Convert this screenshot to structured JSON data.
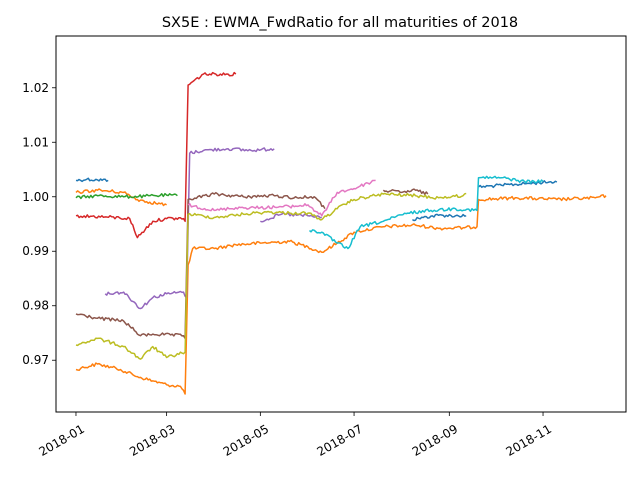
{
  "chart_data": {
    "type": "line",
    "title": "SX5E : EWMA_FwdRatio for all maturities of 2018",
    "xlabel": "",
    "ylabel": "",
    "x_axis": "date",
    "xlim": [
      "2017-12-19",
      "2018-12-25"
    ],
    "ylim": [
      0.9605,
      1.0295
    ],
    "x_ticks": [
      "2018-01-01",
      "2018-03-01",
      "2018-05-01",
      "2018-07-01",
      "2018-09-01",
      "2018-11-01"
    ],
    "x_tick_labels": [
      "2018-01",
      "2018-03",
      "2018-05",
      "2018-07",
      "2018-09",
      "2018-11"
    ],
    "y_ticks": [
      0.97,
      0.98,
      0.99,
      1.0,
      1.01,
      1.02
    ],
    "y_tick_labels": [
      "0.97",
      "0.98",
      "0.99",
      "1.00",
      "1.01",
      "1.02"
    ],
    "grid": false,
    "legend": "none",
    "series": [
      {
        "color": "#1f77b4",
        "points": [
          [
            "2018-01-01",
            1.003
          ],
          [
            "2018-01-08",
            1.0032
          ],
          [
            "2018-01-15",
            1.0031
          ],
          [
            "2018-01-22",
            1.003
          ]
        ]
      },
      {
        "color": "#1f77b4",
        "points": [
          [
            "2018-08-08",
            0.9958
          ],
          [
            "2018-08-15",
            0.9962
          ],
          [
            "2018-08-25",
            0.9966
          ],
          [
            "2018-09-05",
            0.9965
          ],
          [
            "2018-09-12",
            0.9965
          ]
        ]
      },
      {
        "color": "#1f77b4",
        "points": [
          [
            "2018-09-20",
            1.0018
          ],
          [
            "2018-10-05",
            1.0021
          ],
          [
            "2018-10-20",
            1.0024
          ],
          [
            "2018-11-05",
            1.0027
          ],
          [
            "2018-11-10",
            1.0027
          ]
        ]
      },
      {
        "color": "#ff7f0e",
        "points": [
          [
            "2018-01-01",
            0.9683
          ],
          [
            "2018-01-15",
            0.9693
          ],
          [
            "2018-01-30",
            0.9683
          ],
          [
            "2018-02-10",
            0.967
          ],
          [
            "2018-02-20",
            0.9662
          ],
          [
            "2018-03-01",
            0.9655
          ],
          [
            "2018-03-10",
            0.9652
          ],
          [
            "2018-03-13",
            0.9638
          ],
          [
            "2018-03-15",
            0.9875
          ],
          [
            "2018-03-18",
            0.9905
          ],
          [
            "2018-04-01",
            0.9905
          ],
          [
            "2018-04-15",
            0.9912
          ],
          [
            "2018-05-01",
            0.9915
          ],
          [
            "2018-05-20",
            0.9918
          ],
          [
            "2018-06-01",
            0.9908
          ],
          [
            "2018-06-10",
            0.9898
          ],
          [
            "2018-06-20",
            0.9915
          ],
          [
            "2018-07-01",
            0.9935
          ],
          [
            "2018-07-20",
            0.9945
          ],
          [
            "2018-08-10",
            0.9948
          ],
          [
            "2018-08-25",
            0.9942
          ],
          [
            "2018-09-10",
            0.9943
          ],
          [
            "2018-09-19",
            0.9945
          ],
          [
            "2018-09-20",
            0.9995
          ],
          [
            "2018-10-15",
            0.9998
          ],
          [
            "2018-11-10",
            0.9995
          ],
          [
            "2018-12-05",
            0.9998
          ],
          [
            "2018-12-12",
            1.0002
          ]
        ]
      },
      {
        "color": "#ff7f0e",
        "points": [
          [
            "2018-01-01",
            1.0008
          ],
          [
            "2018-01-15",
            1.0012
          ],
          [
            "2018-02-01",
            1.0008
          ],
          [
            "2018-02-10",
            0.9995
          ],
          [
            "2018-02-18",
            0.999
          ],
          [
            "2018-03-01",
            0.9985
          ]
        ]
      },
      {
        "color": "#2ca02c",
        "points": [
          [
            "2018-01-01",
            0.9998
          ],
          [
            "2018-01-15",
            1.0002
          ],
          [
            "2018-02-01",
            1.0
          ],
          [
            "2018-02-15",
            1.0001
          ],
          [
            "2018-03-01",
            1.0003
          ],
          [
            "2018-03-08",
            1.0002
          ]
        ]
      },
      {
        "color": "#d62728",
        "points": [
          [
            "2018-01-01",
            0.9965
          ],
          [
            "2018-01-20",
            0.9963
          ],
          [
            "2018-02-05",
            0.996
          ],
          [
            "2018-02-10",
            0.9925
          ],
          [
            "2018-02-20",
            0.9955
          ],
          [
            "2018-03-01",
            0.996
          ],
          [
            "2018-03-12",
            0.996
          ],
          [
            "2018-03-13",
            0.9955
          ],
          [
            "2018-03-15",
            1.0205
          ],
          [
            "2018-03-25",
            1.0225
          ],
          [
            "2018-04-05",
            1.0225
          ],
          [
            "2018-04-15",
            1.0225
          ]
        ]
      },
      {
        "color": "#9467bd",
        "points": [
          [
            "2018-01-20",
            0.9822
          ],
          [
            "2018-02-01",
            0.9825
          ],
          [
            "2018-02-12",
            0.9795
          ],
          [
            "2018-02-20",
            0.9815
          ],
          [
            "2018-03-01",
            0.9822
          ],
          [
            "2018-03-12",
            0.9825
          ],
          [
            "2018-03-14",
            0.9815
          ],
          [
            "2018-03-16",
            1.008
          ],
          [
            "2018-03-25",
            1.0085
          ],
          [
            "2018-04-10",
            1.0088
          ],
          [
            "2018-04-25",
            1.0085
          ],
          [
            "2018-05-10",
            1.0088
          ]
        ]
      },
      {
        "color": "#9467bd",
        "points": [
          [
            "2018-05-01",
            0.9955
          ],
          [
            "2018-05-15",
            0.9968
          ],
          [
            "2018-06-01",
            0.9965
          ],
          [
            "2018-06-10",
            0.9962
          ]
        ]
      },
      {
        "color": "#8c564b",
        "points": [
          [
            "2018-01-01",
            0.9785
          ],
          [
            "2018-01-15",
            0.9777
          ],
          [
            "2018-02-01",
            0.9772
          ],
          [
            "2018-02-12",
            0.9745
          ],
          [
            "2018-02-20",
            0.9748
          ],
          [
            "2018-03-12",
            0.9745
          ],
          [
            "2018-03-13",
            0.974
          ],
          [
            "2018-03-15",
            0.9995
          ],
          [
            "2018-04-01",
            1.0005
          ],
          [
            "2018-04-20",
            1.0
          ],
          [
            "2018-05-10",
            1.0002
          ],
          [
            "2018-05-25",
            0.9998
          ],
          [
            "2018-06-05",
            1.0
          ],
          [
            "2018-06-12",
            0.9978
          ]
        ]
      },
      {
        "color": "#8c564b",
        "points": [
          [
            "2018-07-20",
            1.0012
          ],
          [
            "2018-08-01",
            1.0008
          ],
          [
            "2018-08-10",
            1.0012
          ],
          [
            "2018-08-18",
            1.0005
          ]
        ]
      },
      {
        "color": "#e377c2",
        "points": [
          [
            "2018-03-15",
            0.9985
          ],
          [
            "2018-04-01",
            0.9975
          ],
          [
            "2018-04-15",
            0.998
          ],
          [
            "2018-05-01",
            0.998
          ],
          [
            "2018-05-20",
            0.9982
          ],
          [
            "2018-06-01",
            0.9985
          ],
          [
            "2018-06-10",
            0.9965
          ],
          [
            "2018-06-20",
            1.0008
          ],
          [
            "2018-07-01",
            1.0015
          ],
          [
            "2018-07-10",
            1.0025
          ],
          [
            "2018-07-15",
            1.003
          ]
        ]
      },
      {
        "color": "#bcbd22",
        "points": [
          [
            "2018-01-01",
            0.9728
          ],
          [
            "2018-01-15",
            0.974
          ],
          [
            "2018-02-01",
            0.9725
          ],
          [
            "2018-02-12",
            0.9702
          ],
          [
            "2018-02-20",
            0.9725
          ],
          [
            "2018-03-01",
            0.9705
          ],
          [
            "2018-03-13",
            0.9715
          ],
          [
            "2018-03-15",
            0.9968
          ],
          [
            "2018-04-01",
            0.9962
          ],
          [
            "2018-04-20",
            0.9968
          ],
          [
            "2018-05-05",
            0.9972
          ],
          [
            "2018-05-20",
            0.997
          ],
          [
            "2018-06-01",
            0.997
          ],
          [
            "2018-06-10",
            0.9958
          ],
          [
            "2018-06-20",
            0.9978
          ],
          [
            "2018-07-01",
            0.9995
          ],
          [
            "2018-07-20",
            1.0005
          ],
          [
            "2018-08-10",
            1.0002
          ],
          [
            "2018-08-25",
            0.9998
          ],
          [
            "2018-09-10",
            1.0002
          ],
          [
            "2018-09-12",
            1.0006
          ]
        ]
      },
      {
        "color": "#17becf",
        "points": [
          [
            "2018-06-02",
            0.9938
          ],
          [
            "2018-06-10",
            0.9935
          ],
          [
            "2018-06-20",
            0.9915
          ],
          [
            "2018-06-27",
            0.9905
          ],
          [
            "2018-07-05",
            0.9945
          ],
          [
            "2018-07-20",
            0.9955
          ],
          [
            "2018-08-05",
            0.997
          ],
          [
            "2018-08-20",
            0.9975
          ],
          [
            "2018-09-05",
            0.9978
          ],
          [
            "2018-09-19",
            0.9975
          ],
          [
            "2018-09-20",
            1.0035
          ],
          [
            "2018-10-05",
            1.0035
          ],
          [
            "2018-10-20",
            1.0028
          ],
          [
            "2018-11-01",
            1.0028
          ]
        ]
      }
    ]
  }
}
